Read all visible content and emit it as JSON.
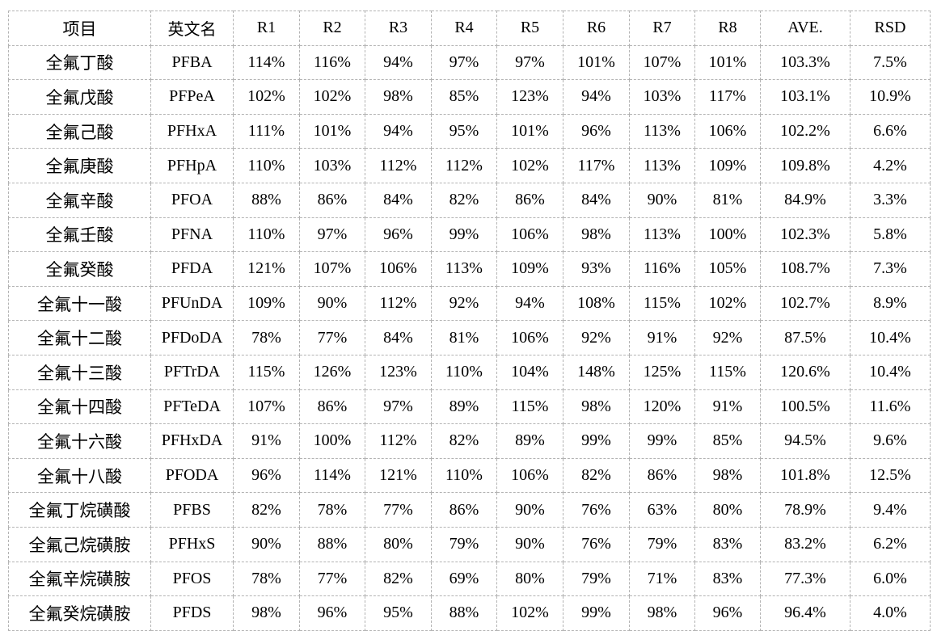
{
  "table": {
    "columns": [
      "项目",
      "英文名",
      "R1",
      "R2",
      "R3",
      "R4",
      "R5",
      "R6",
      "R7",
      "R8",
      "AVE.",
      "RSD"
    ],
    "rows": [
      {
        "name_cn": "全氟丁酸",
        "name_en": "PFBA",
        "values": [
          "114%",
          "116%",
          "94%",
          "97%",
          "97%",
          "101%",
          "107%",
          "101%"
        ],
        "ave": "103.3%",
        "rsd": "7.5%"
      },
      {
        "name_cn": "全氟戊酸",
        "name_en": "PFPeA",
        "values": [
          "102%",
          "102%",
          "98%",
          "85%",
          "123%",
          "94%",
          "103%",
          "117%"
        ],
        "ave": "103.1%",
        "rsd": "10.9%"
      },
      {
        "name_cn": "全氟己酸",
        "name_en": "PFHxA",
        "values": [
          "111%",
          "101%",
          "94%",
          "95%",
          "101%",
          "96%",
          "113%",
          "106%"
        ],
        "ave": "102.2%",
        "rsd": "6.6%"
      },
      {
        "name_cn": "全氟庚酸",
        "name_en": "PFHpA",
        "values": [
          "110%",
          "103%",
          "112%",
          "112%",
          "102%",
          "117%",
          "113%",
          "109%"
        ],
        "ave": "109.8%",
        "rsd": "4.2%"
      },
      {
        "name_cn": "全氟辛酸",
        "name_en": "PFOA",
        "values": [
          "88%",
          "86%",
          "84%",
          "82%",
          "86%",
          "84%",
          "90%",
          "81%"
        ],
        "ave": "84.9%",
        "rsd": "3.3%"
      },
      {
        "name_cn": "全氟壬酸",
        "name_en": "PFNA",
        "values": [
          "110%",
          "97%",
          "96%",
          "99%",
          "106%",
          "98%",
          "113%",
          "100%"
        ],
        "ave": "102.3%",
        "rsd": "5.8%"
      },
      {
        "name_cn": "全氟癸酸",
        "name_en": "PFDA",
        "values": [
          "121%",
          "107%",
          "106%",
          "113%",
          "109%",
          "93%",
          "116%",
          "105%"
        ],
        "ave": "108.7%",
        "rsd": "7.3%"
      },
      {
        "name_cn": "全氟十一酸",
        "name_en": "PFUnDA",
        "values": [
          "109%",
          "90%",
          "112%",
          "92%",
          "94%",
          "108%",
          "115%",
          "102%"
        ],
        "ave": "102.7%",
        "rsd": "8.9%"
      },
      {
        "name_cn": "全氟十二酸",
        "name_en": "PFDoDA",
        "values": [
          "78%",
          "77%",
          "84%",
          "81%",
          "106%",
          "92%",
          "91%",
          "92%"
        ],
        "ave": "87.5%",
        "rsd": "10.4%"
      },
      {
        "name_cn": "全氟十三酸",
        "name_en": "PFTrDA",
        "values": [
          "115%",
          "126%",
          "123%",
          "110%",
          "104%",
          "148%",
          "125%",
          "115%"
        ],
        "ave": "120.6%",
        "rsd": "10.4%"
      },
      {
        "name_cn": "全氟十四酸",
        "name_en": "PFTeDA",
        "values": [
          "107%",
          "86%",
          "97%",
          "89%",
          "115%",
          "98%",
          "120%",
          "91%"
        ],
        "ave": "100.5%",
        "rsd": "11.6%"
      },
      {
        "name_cn": "全氟十六酸",
        "name_en": "PFHxDA",
        "values": [
          "91%",
          "100%",
          "112%",
          "82%",
          "89%",
          "99%",
          "99%",
          "85%"
        ],
        "ave": "94.5%",
        "rsd": "9.6%"
      },
      {
        "name_cn": "全氟十八酸",
        "name_en": "PFODA",
        "values": [
          "96%",
          "114%",
          "121%",
          "110%",
          "106%",
          "82%",
          "86%",
          "98%"
        ],
        "ave": "101.8%",
        "rsd": "12.5%"
      },
      {
        "name_cn": "全氟丁烷磺酸",
        "name_en": "PFBS",
        "values": [
          "82%",
          "78%",
          "77%",
          "86%",
          "90%",
          "76%",
          "63%",
          "80%"
        ],
        "ave": "78.9%",
        "rsd": "9.4%"
      },
      {
        "name_cn": "全氟己烷磺胺",
        "name_en": "PFHxS",
        "values": [
          "90%",
          "88%",
          "80%",
          "79%",
          "90%",
          "76%",
          "79%",
          "83%"
        ],
        "ave": "83.2%",
        "rsd": "6.2%"
      },
      {
        "name_cn": "全氟辛烷磺胺",
        "name_en": "PFOS",
        "values": [
          "78%",
          "77%",
          "82%",
          "69%",
          "80%",
          "79%",
          "71%",
          "83%"
        ],
        "ave": "77.3%",
        "rsd": "6.0%"
      },
      {
        "name_cn": "全氟癸烷磺胺",
        "name_en": "PFDS",
        "values": [
          "98%",
          "96%",
          "95%",
          "88%",
          "102%",
          "99%",
          "98%",
          "96%"
        ],
        "ave": "96.4%",
        "rsd": "4.0%"
      }
    ],
    "colors": {
      "border": "#b3b3b3",
      "text": "#000000",
      "background": "#ffffff"
    }
  }
}
